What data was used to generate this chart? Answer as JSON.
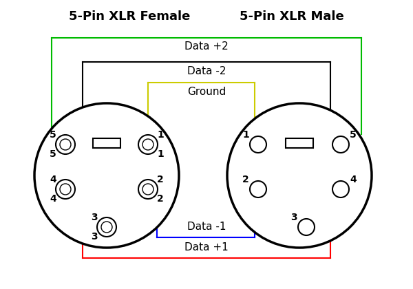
{
  "title_left": "5-Pin XLR Female",
  "title_right": "5-Pin XLR Male",
  "background_color": "#ffffff",
  "wire_labels": [
    "Data +2",
    "Data -2",
    "Ground",
    "Data -1",
    "Data +1"
  ],
  "wire_colors": [
    "#00bb00",
    "#000000",
    "#cccc00",
    "#0000ff",
    "#ff0000"
  ],
  "font_size_title": 13,
  "font_size_label": 11,
  "font_size_pin": 10
}
